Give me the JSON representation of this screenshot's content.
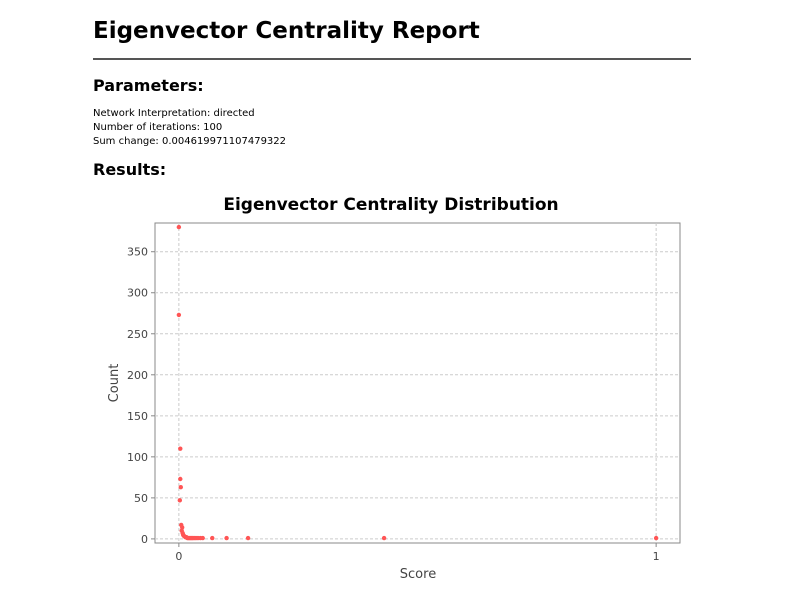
{
  "report": {
    "title": "Eigenvector Centrality Report",
    "parameters_heading": "Parameters:",
    "parameters": [
      "Network Interpretation: directed",
      "Number of iterations: 100",
      "Sum change: 0.004619971107479322"
    ],
    "results_heading": "Results:"
  },
  "chart_data": {
    "type": "scatter",
    "title": "Eigenvector Centrality Distribution",
    "xlabel": "Score",
    "ylabel": "Count",
    "xlim": [
      -0.05,
      1.05
    ],
    "ylim": [
      -5,
      385
    ],
    "xticks": [
      0,
      1
    ],
    "yticks": [
      0,
      50,
      100,
      150,
      200,
      250,
      300,
      350
    ],
    "grid": true,
    "point_color": "#ff5555",
    "points": [
      [
        0.0,
        380
      ],
      [
        0.0,
        273
      ],
      [
        0.003,
        110
      ],
      [
        0.003,
        73
      ],
      [
        0.004,
        63
      ],
      [
        0.002,
        47
      ],
      [
        0.005,
        17
      ],
      [
        0.007,
        14
      ],
      [
        0.006,
        10
      ],
      [
        0.008,
        7
      ],
      [
        0.009,
        5
      ],
      [
        0.01,
        4
      ],
      [
        0.012,
        3
      ],
      [
        0.014,
        2
      ],
      [
        0.016,
        2
      ],
      [
        0.018,
        1
      ],
      [
        0.02,
        1
      ],
      [
        0.022,
        1
      ],
      [
        0.024,
        1
      ],
      [
        0.026,
        1
      ],
      [
        0.028,
        1
      ],
      [
        0.03,
        1
      ],
      [
        0.033,
        1
      ],
      [
        0.036,
        1
      ],
      [
        0.04,
        1
      ],
      [
        0.045,
        1
      ],
      [
        0.05,
        1
      ],
      [
        0.07,
        1
      ],
      [
        0.1,
        1
      ],
      [
        0.145,
        1
      ],
      [
        0.43,
        1
      ],
      [
        1.0,
        1
      ]
    ]
  }
}
